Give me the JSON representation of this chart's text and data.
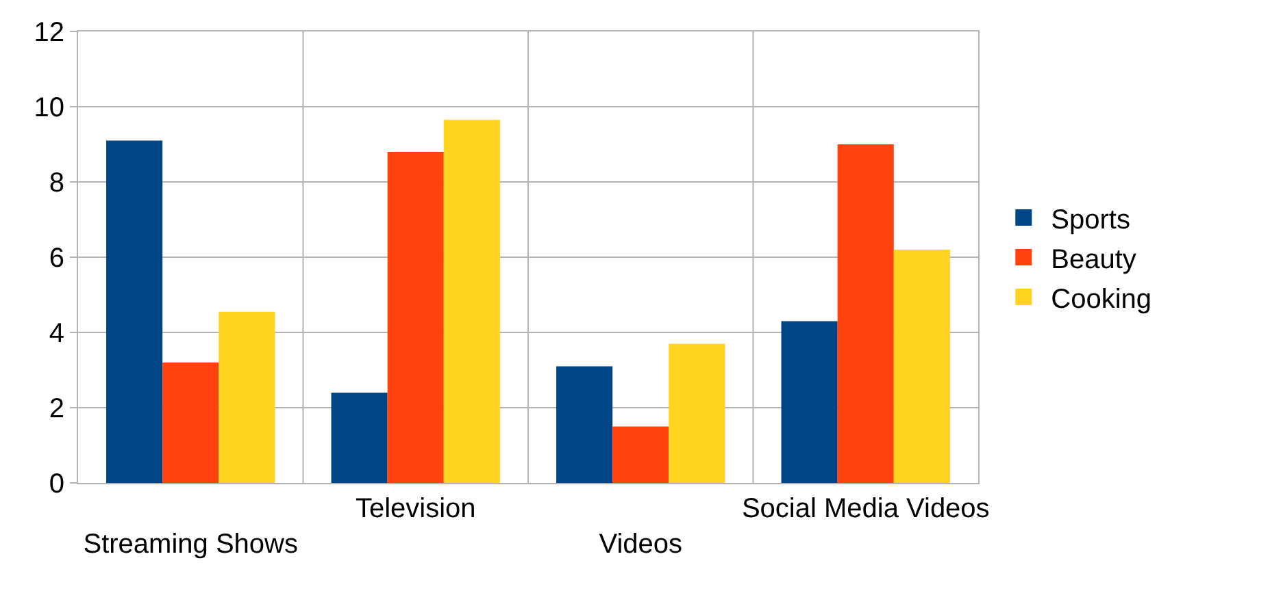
{
  "chart_data": {
    "type": "bar",
    "categories": [
      "Streaming Shows",
      "Television",
      "Videos",
      "Social Media Videos"
    ],
    "series": [
      {
        "name": "Sports",
        "color": "#004586",
        "values": [
          9.1,
          2.4,
          3.1,
          4.3
        ]
      },
      {
        "name": "Beauty",
        "color": "#ff420e",
        "values": [
          3.2,
          8.8,
          1.5,
          9.0
        ]
      },
      {
        "name": "Cooking",
        "color": "#ffd320",
        "values": [
          4.55,
          9.65,
          3.7,
          6.2
        ]
      }
    ],
    "ylim": [
      0,
      12
    ],
    "yticks": [
      0,
      2,
      4,
      6,
      8,
      10,
      12
    ],
    "grid": true,
    "legend": "right"
  }
}
